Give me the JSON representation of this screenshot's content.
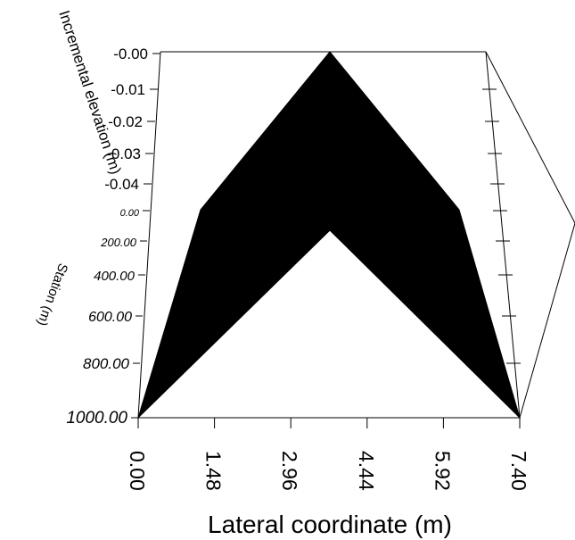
{
  "chart_data": {
    "type": "area",
    "plot_style": "3d-surface",
    "surface_color": "#000000",
    "xlabel": "Lateral coordinate (m)",
    "ylabel": "Station (m)",
    "zlabel": "Incremental elevation (m)",
    "x_ticks": [
      "0.00",
      "1.48",
      "2.96",
      "4.44",
      "5.92",
      "7.40"
    ],
    "y_ticks": [
      "0.00",
      "200.00",
      "400.00",
      "600.00",
      "800.00",
      "1000.00"
    ],
    "z_ticks": [
      "-0.00",
      "-0.01",
      "-0.02",
      "-0.03",
      "-0.04"
    ],
    "xlim": [
      0,
      7.4
    ],
    "ylim": [
      0,
      1000
    ],
    "zlim": [
      -0.04,
      0
    ],
    "stations": [
      0,
      1000
    ],
    "lateral_coordinates": [
      0,
      1.3,
      3.7,
      6.0,
      7.4
    ],
    "surface_profiles": [
      {
        "station": 0,
        "elevation": [
          0,
          0,
          0,
          0,
          0
        ]
      },
      {
        "station": 1000,
        "elevation": [
          0,
          0,
          0,
          0,
          0
        ]
      }
    ]
  }
}
